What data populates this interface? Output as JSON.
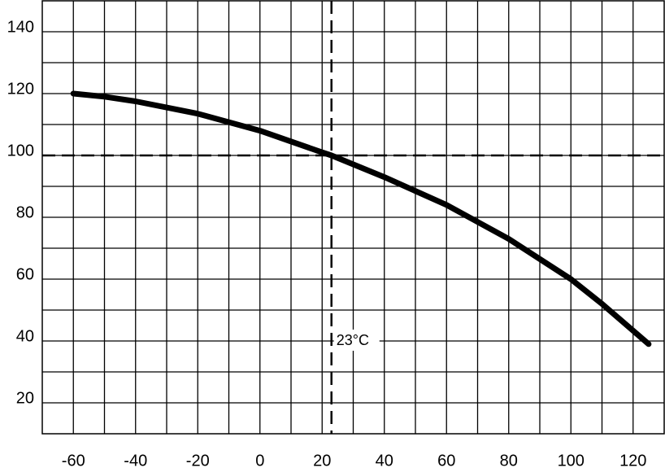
{
  "chart_data": {
    "type": "line",
    "x": [
      -60,
      -50,
      -40,
      -20,
      0,
      20,
      23,
      40,
      60,
      80,
      100,
      110,
      125
    ],
    "series": [
      {
        "color": "#000000",
        "values": [
          120,
          119,
          117.5,
          113.5,
          108,
          101,
          100,
          93,
          84,
          73,
          60,
          52,
          39
        ]
      }
    ],
    "xlim": [
      -70,
      130
    ],
    "xticks": [
      -60,
      -40,
      -20,
      0,
      20,
      40,
      60,
      80,
      100,
      120
    ],
    "ylim": [
      10,
      150
    ],
    "yticks": [
      20,
      40,
      60,
      80,
      100,
      120,
      140
    ],
    "grid": true,
    "reference_lines": {
      "x": [
        23
      ],
      "y": [
        100
      ]
    },
    "annotation": {
      "text": "23°C",
      "x": 23,
      "y": 40
    }
  }
}
